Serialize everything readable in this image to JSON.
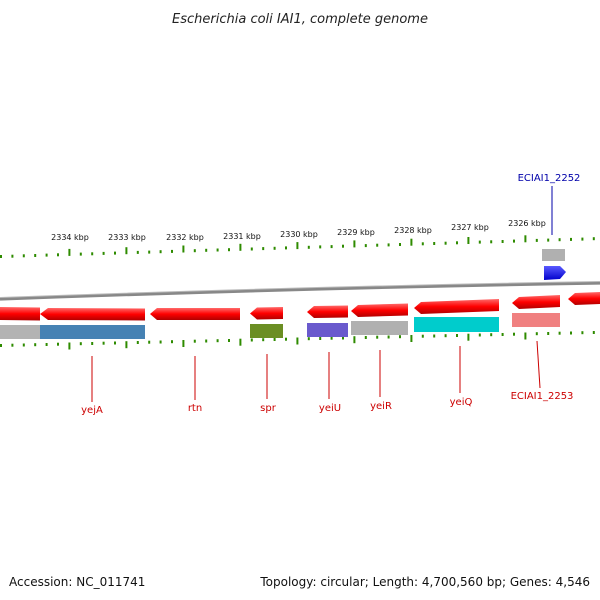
{
  "title": "Escherichia coli IAI1, complete genome",
  "footer": {
    "accession": "Accession: NC_011741",
    "summary": "Topology: circular; Length: 4,700,560 bp; Genes: 4,546"
  },
  "scale_labels": [
    "2334 kbp",
    "2333 kbp",
    "2332 kbp",
    "2331 kbp",
    "2330 kbp",
    "2329 kbp",
    "2328 kbp",
    "2327 kbp",
    "2326 kbp"
  ],
  "genes": [
    {
      "name": "yejA",
      "color": "#cc0000"
    },
    {
      "name": "rtn",
      "color": "#cc0000"
    },
    {
      "name": "spr",
      "color": "#cc0000"
    },
    {
      "name": "yeiU",
      "color": "#cc0000"
    },
    {
      "name": "yeiR",
      "color": "#cc0000"
    },
    {
      "name": "yeiQ",
      "color": "#cc0000"
    },
    {
      "name": "ECIAI1_2253",
      "color": "#cc0000"
    },
    {
      "name": "ECIAI1_2252",
      "color": "#0000aa"
    }
  ],
  "colors": {
    "cds": "#ff0000",
    "backbone": "#888888",
    "ticks": "#2e8b00",
    "cog_gray": "#b0b0b0",
    "cog_steelblue": "#4682b4",
    "cog_olive": "#6b8e23",
    "cog_slateblue": "#6a5acd",
    "cog_cyan": "#00cccc",
    "cog_salmon": "#f08080",
    "marker_blue": "#0000ff"
  }
}
